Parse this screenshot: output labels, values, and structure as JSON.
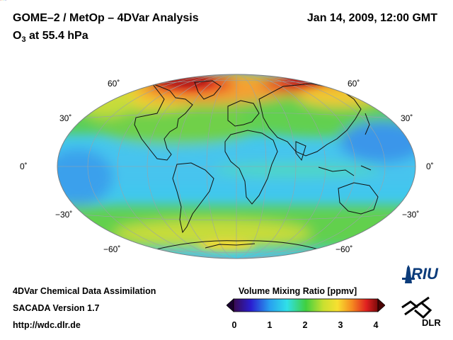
{
  "header": {
    "title": "GOME–2 / MetOp – 4DVar Analysis",
    "subtitle_base": "O",
    "subtitle_sub": "3",
    "subtitle_rest": " at 55.4 hPa",
    "date": "Jan 14, 2009, 12:00 GMT"
  },
  "map": {
    "projection": "Hammer-Aitoff global",
    "lat_labels": [
      "60˚",
      "30˚",
      "0˚",
      "−30˚",
      "−60˚"
    ],
    "colors": {
      "dark_red": "#8b0000",
      "red": "#e0181e",
      "orange": "#f59a1e",
      "yellow": "#f2e830",
      "green": "#5cd04a",
      "cyan": "#3ed8e8",
      "light_blue": "#46b8f0",
      "blue": "#2050e0",
      "purple": "#2a0a6a"
    }
  },
  "colorbar": {
    "title": "Volume Mixing Ratio [ppmv]",
    "ticks": [
      "0",
      "1",
      "2",
      "3",
      "4"
    ],
    "min": 0,
    "max": 4
  },
  "footer": {
    "line1": "4DVar Chemical Data Assimilation",
    "line2": "SACADA Version 1.7",
    "line3": "http://wdc.dlr.de"
  },
  "logos": {
    "riu": "RIU",
    "dlr": "DLR"
  }
}
